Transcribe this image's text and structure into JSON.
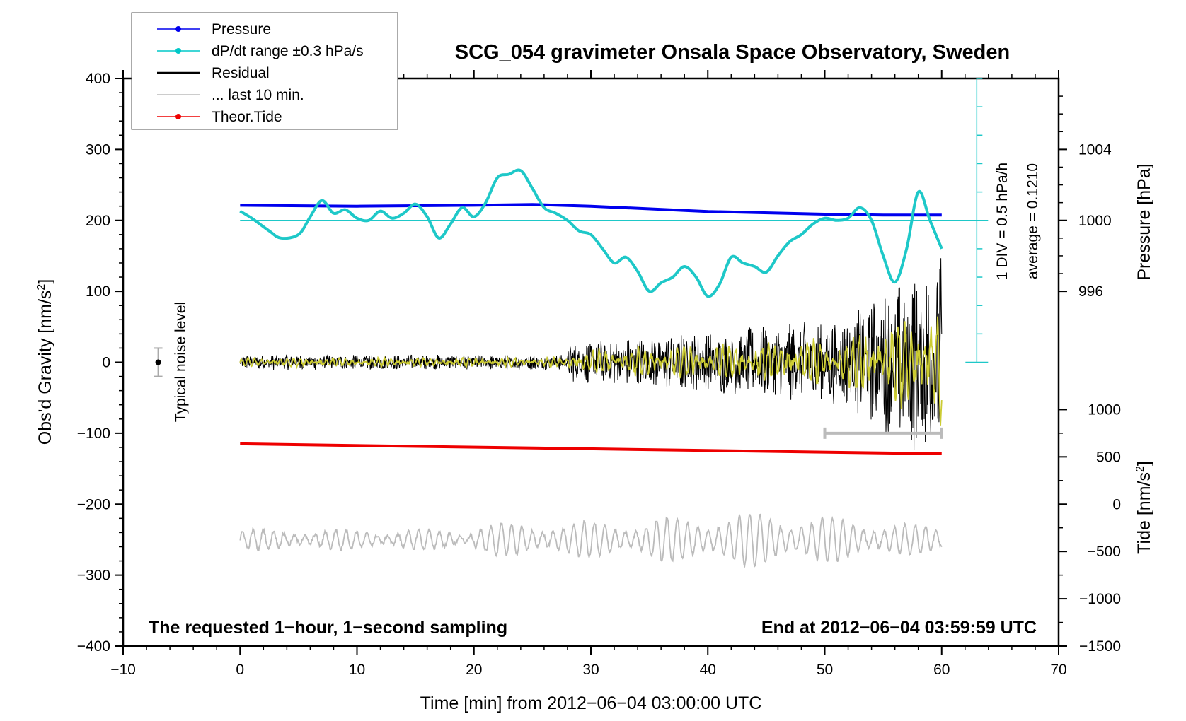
{
  "chart_data": {
    "type": "line",
    "title": "SCG_054 gravimeter Onsala Space Observatory, Sweden",
    "xlabel": "Time [min] from 2012−06−04 03:00:00 UTC",
    "ylabel_left": "Obs'd Gravity [nm/s",
    "ylabel_left_sup": "2",
    "ylabel_left_end": "]",
    "ylabel_pressure": "Pressure [hPa]",
    "ylabel_tide": "Tide [nm/s",
    "ylabel_tide_sup": "2",
    "ylabel_tide_end": "]",
    "xlim": [
      -10,
      70
    ],
    "ylim": [
      -400,
      400
    ],
    "x_ticks": [
      "−10",
      "0",
      "10",
      "20",
      "30",
      "40",
      "50",
      "60",
      "70"
    ],
    "x_tick_values": [
      -10,
      0,
      10,
      20,
      30,
      40,
      50,
      60,
      70
    ],
    "y_ticks": [
      "400",
      "300",
      "200",
      "100",
      "0",
      "−100",
      "−200",
      "−300",
      "−400"
    ],
    "y_tick_values": [
      400,
      300,
      200,
      100,
      0,
      -100,
      -200,
      -300,
      -400
    ],
    "pressure_ticks": [
      "1004",
      "1000",
      "996"
    ],
    "pressure_tick_values": [
      1004,
      1000,
      996
    ],
    "pressure_axis": {
      "value_at_gravity_200": 1000,
      "hpa_per_100_gravity": 4
    },
    "tide_ticks": [
      "1000",
      "500",
      "0",
      "−500",
      "−1000",
      "−1500"
    ],
    "tide_tick_values": [
      1000,
      500,
      0,
      -500,
      -1000,
      -1500
    ],
    "tide_axis": {
      "value_at_gravity_minus_400": -1500,
      "nms2_per_100_gravity": 750
    },
    "legend": [
      {
        "label": "Pressure",
        "color": "#0000ee",
        "marker": true
      },
      {
        "label": "dP/dt range ±0.3 hPa/s",
        "color": "#00c8c8",
        "marker": true
      },
      {
        "label": "Residual",
        "color": "#000000",
        "marker": false
      },
      {
        "label": "... last 10 min.",
        "color": "#bbbbbb",
        "marker": false
      },
      {
        "label": "Theor.Tide",
        "color": "#ee0000",
        "marker": true
      }
    ],
    "series": [
      {
        "name": "Pressure",
        "color": "#0000ee",
        "x": [
          0,
          10,
          20,
          25,
          30,
          40,
          50,
          55,
          60
        ],
        "values": [
          1000.85,
          1000.8,
          1000.85,
          1000.9,
          1000.8,
          1000.5,
          1000.35,
          1000.3,
          1000.3
        ],
        "unit": "hPa"
      },
      {
        "name": "dP/dt",
        "color": "#1ec8c8",
        "x": [
          0,
          1,
          2.5,
          3.5,
          5,
          6,
          7,
          8,
          9,
          10,
          11,
          12,
          13,
          14,
          15,
          16,
          17,
          18,
          19,
          20,
          21,
          22,
          23,
          24,
          25,
          26,
          27,
          28,
          29,
          30,
          31,
          32,
          33,
          34,
          35,
          36,
          37,
          38,
          39,
          40,
          41,
          42,
          43,
          44,
          45,
          46,
          47,
          48,
          49,
          50,
          51,
          52,
          53,
          54,
          55,
          56,
          57,
          58,
          59,
          60
        ],
        "values": [
          213,
          203,
          185,
          175,
          180,
          205,
          228,
          210,
          215,
          203,
          200,
          213,
          203,
          210,
          223,
          205,
          175,
          195,
          218,
          205,
          225,
          260,
          265,
          270,
          245,
          218,
          210,
          200,
          185,
          180,
          160,
          140,
          148,
          128,
          100,
          112,
          120,
          135,
          120,
          93,
          110,
          148,
          140,
          135,
          127,
          150,
          170,
          180,
          195,
          203,
          200,
          203,
          218,
          200,
          150,
          113,
          160,
          240,
          200,
          160
        ],
        "unit": "gravity-frame"
      },
      {
        "name": "Theor.Tide",
        "color": "#ee0000",
        "x": [
          0,
          60
        ],
        "values": [
          -115,
          -129
        ]
      }
    ],
    "residual": {
      "color": "#000000",
      "x_range": [
        0,
        60
      ],
      "samples": 3600,
      "note": "1-second sampling, amplitude grows from ~±10 to ~±150"
    },
    "residual_filtered": {
      "color": "#cccc33",
      "x_range": [
        0,
        60
      ]
    },
    "last_10_min": {
      "color": "#bbbbbb",
      "x_range": [
        0,
        60
      ],
      "baseline": -250,
      "note": "magnified trace of last 10 minutes"
    },
    "last_10_min_bracket": {
      "x_range": [
        50,
        60
      ],
      "y": -100,
      "color": "#bbbbbb"
    },
    "dpdt_scale": {
      "x": 63,
      "y_range": [
        0,
        400
      ],
      "zero_at": 200,
      "color": "#1ec8c8"
    },
    "noise_level": {
      "x": -7,
      "y": 0,
      "err": 20,
      "label": "Typical noise level"
    },
    "annotation_div": "1 DIV = 0.5 hPa/h",
    "annotation_avg": "average = 0.1210",
    "annotation_bottom_left": "The requested 1−hour, 1−second sampling",
    "annotation_bottom_right": "End at 2012−06−04 03:59:59 UTC",
    "grid": false,
    "legend_position": "top-left"
  }
}
